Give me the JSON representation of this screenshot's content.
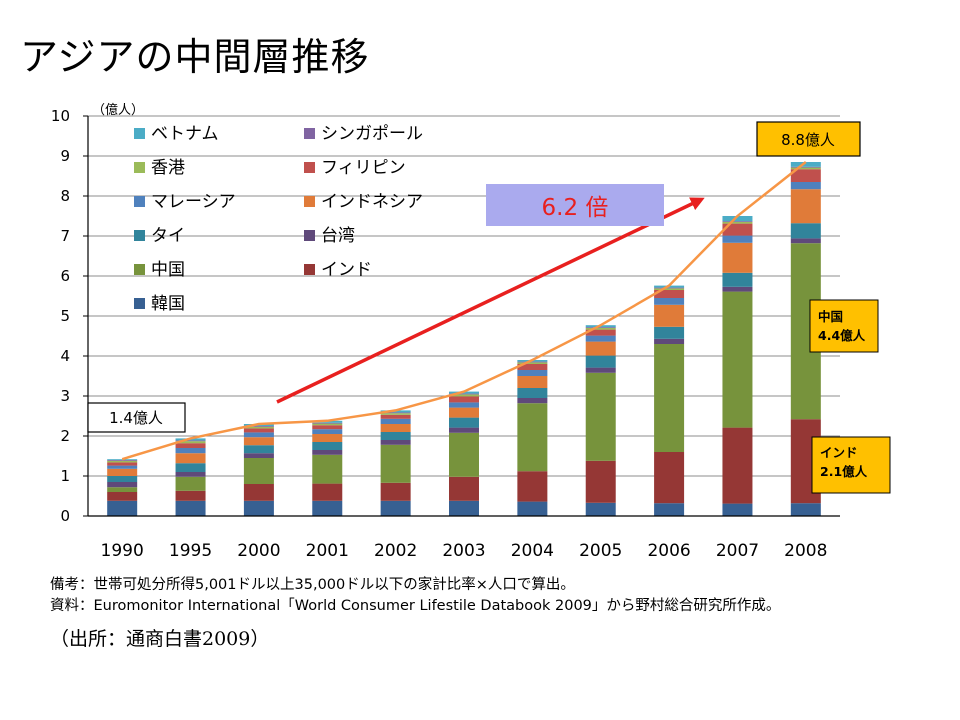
{
  "slide": {
    "title": "アジアの中間層推移",
    "note_line1": "備考：世帯可処分所得5,001ドル以上35,000ドル以下の家計比率×人口で算出。",
    "note_line2": "資料：Euromonitor International「World Consumer Lifestile Databook 2009」から野村総合研究所作成。",
    "source": "（出所：通商白書2009）"
  },
  "colors": {
    "ベトナム": "#4bacc6",
    "シンガポール": "#8064a2",
    "香港": "#9bbb59",
    "フィリピン": "#c0504d",
    "マレーシア": "#4f81bd",
    "インドネシア": "#e07b39",
    "タイ": "#31849b",
    "台湾": "#5f497a",
    "中国": "#77933c",
    "インド": "#953735",
    "韓国": "#376092",
    "total_line": "#f79646",
    "arrow": "#e8201f",
    "callout_fill": "#ffc000",
    "highlight_box": "#aaaaee"
  },
  "chart_data": {
    "type": "bar",
    "stacked": true,
    "categories": [
      "1990",
      "1995",
      "2000",
      "2001",
      "2002",
      "2003",
      "2004",
      "2005",
      "2006",
      "2007",
      "2008"
    ],
    "ylabel": "（億人）",
    "ylim": [
      0,
      10
    ],
    "yticks": [
      "0",
      "1",
      "2",
      "3",
      "4",
      "5",
      "6",
      "7",
      "8",
      "9",
      "10"
    ],
    "grid": true,
    "legend_position": "top-left",
    "legend": [
      "ベトナム",
      "シンガポール",
      "香港",
      "フィリピン",
      "マレーシア",
      "インドネシア",
      "タイ",
      "台湾",
      "中国",
      "インド",
      "韓国"
    ],
    "series": [
      {
        "name": "韓国",
        "values": [
          0.38,
          0.38,
          0.38,
          0.38,
          0.38,
          0.38,
          0.36,
          0.33,
          0.32,
          0.31,
          0.32
        ]
      },
      {
        "name": "インド",
        "values": [
          0.22,
          0.25,
          0.42,
          0.43,
          0.45,
          0.6,
          0.76,
          1.05,
          1.28,
          1.9,
          2.1
        ]
      },
      {
        "name": "中国",
        "values": [
          0.12,
          0.35,
          0.65,
          0.72,
          0.95,
          1.1,
          1.7,
          2.2,
          2.7,
          3.4,
          4.4
        ]
      },
      {
        "name": "台湾",
        "values": [
          0.13,
          0.12,
          0.12,
          0.12,
          0.12,
          0.13,
          0.13,
          0.13,
          0.13,
          0.12,
          0.12
        ]
      },
      {
        "name": "タイ",
        "values": [
          0.15,
          0.22,
          0.2,
          0.2,
          0.2,
          0.25,
          0.25,
          0.3,
          0.3,
          0.35,
          0.38
        ]
      },
      {
        "name": "インドネシア",
        "values": [
          0.18,
          0.25,
          0.2,
          0.2,
          0.2,
          0.25,
          0.3,
          0.35,
          0.55,
          0.75,
          0.85
        ]
      },
      {
        "name": "マレーシア",
        "values": [
          0.08,
          0.13,
          0.12,
          0.12,
          0.13,
          0.13,
          0.15,
          0.15,
          0.17,
          0.18,
          0.18
        ]
      },
      {
        "name": "フィリピン",
        "values": [
          0.08,
          0.12,
          0.1,
          0.1,
          0.1,
          0.15,
          0.15,
          0.15,
          0.2,
          0.3,
          0.32
        ]
      },
      {
        "name": "香港",
        "values": [
          0.04,
          0.05,
          0.04,
          0.04,
          0.04,
          0.05,
          0.04,
          0.04,
          0.04,
          0.04,
          0.04
        ]
      },
      {
        "name": "シンガポール",
        "values": [
          0.02,
          0.02,
          0.02,
          0.02,
          0.02,
          0.02,
          0.02,
          0.02,
          0.02,
          0.02,
          0.02
        ]
      },
      {
        "name": "ベトナム",
        "values": [
          0.02,
          0.05,
          0.05,
          0.05,
          0.05,
          0.05,
          0.04,
          0.05,
          0.05,
          0.13,
          0.12
        ]
      }
    ],
    "totals": [
      1.42,
      1.94,
      2.3,
      2.38,
      2.64,
      3.11,
      3.9,
      4.77,
      5.76,
      7.5,
      8.85
    ],
    "annotations": {
      "start_label": "1.4億人",
      "end_label": "8.8億人",
      "growth_label": "6.2 倍",
      "china_label_line1": "中国",
      "china_label_line2": "4.4億人",
      "india_label_line1": "インド",
      "india_label_line2": "2.1億人"
    }
  }
}
